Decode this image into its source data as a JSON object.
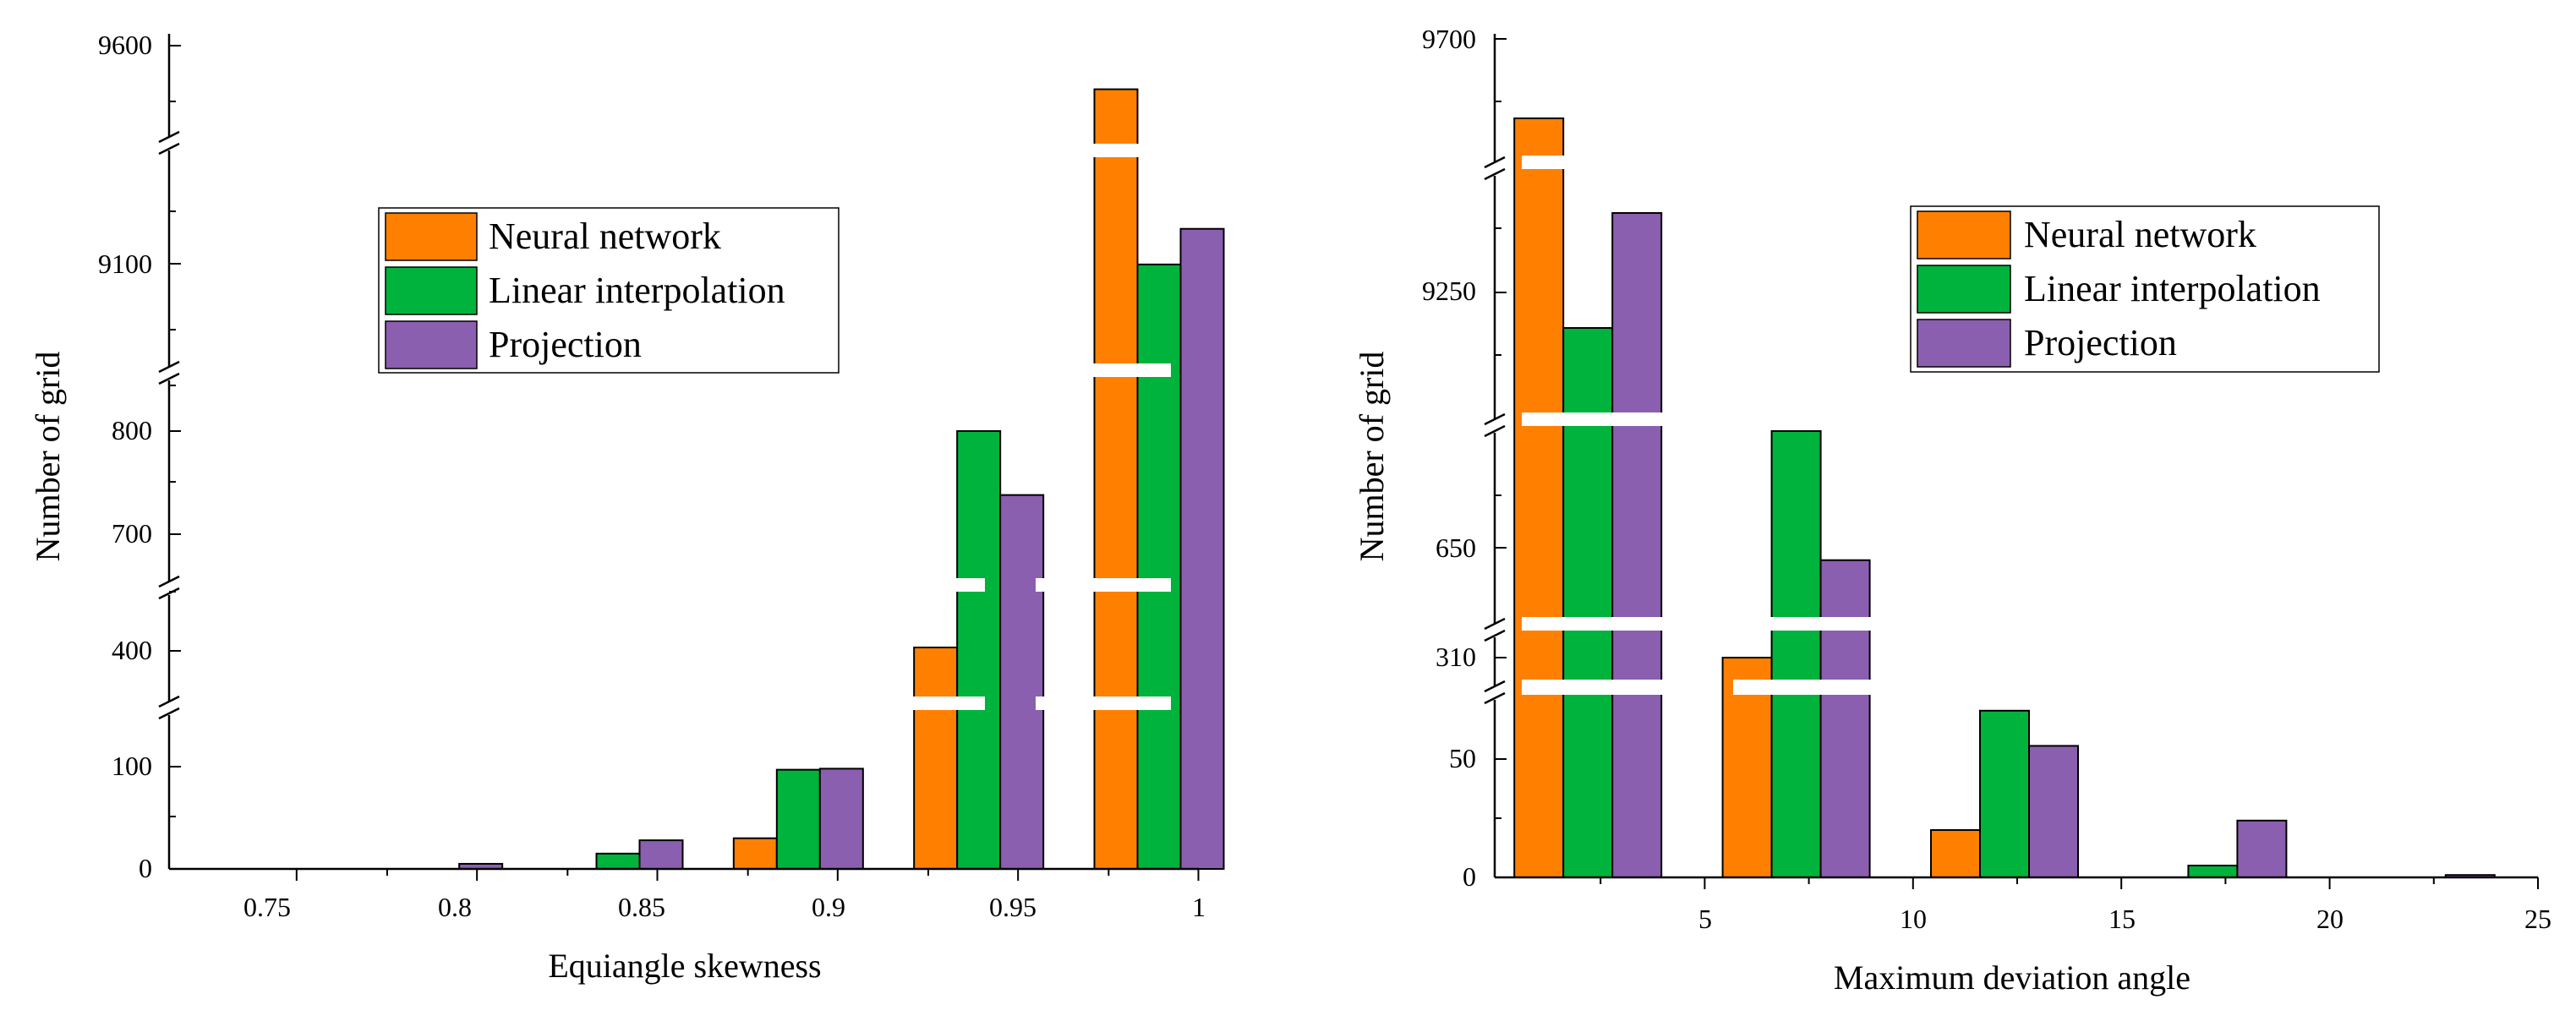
{
  "colors": {
    "neural": "#ff8000",
    "linear": "#00b33c",
    "projection": "#8b5fb0",
    "axis": "#000000",
    "background": "#ffffff"
  },
  "chart_data": [
    {
      "type": "bar",
      "title": "",
      "xlabel": "Equiangle skewness",
      "ylabel": "Number of grid",
      "x_ticks": [
        "0.75",
        "0.8",
        "0.85",
        "0.9",
        "0.95",
        "1"
      ],
      "y_ticks": [
        "0",
        "100",
        "400",
        "700",
        "800",
        "9100",
        "9600"
      ],
      "broken_y_axis": true,
      "legend": [
        "Neural network",
        "Linear interpolation",
        "Projection"
      ],
      "legend_position": "upper-middle",
      "bin_centers": [
        0.75,
        0.8,
        0.85,
        0.9,
        0.95,
        1.0
      ],
      "series": [
        {
          "name": "Neural network",
          "values": [
            0,
            0,
            0,
            30,
            420,
            9500
          ]
        },
        {
          "name": "Linear interpolation",
          "values": [
            0,
            0,
            15,
            97,
            803,
            9070
          ]
        },
        {
          "name": "Projection",
          "values": [
            0,
            5,
            28,
            98,
            738,
            9180
          ]
        }
      ]
    },
    {
      "type": "bar",
      "title": "",
      "xlabel": "Maximum deviation angle",
      "ylabel": "Number of grid",
      "x_ticks": [
        "5",
        "10",
        "15",
        "20",
        "25"
      ],
      "y_ticks": [
        "0",
        "50",
        "310",
        "650",
        "9250",
        "9700"
      ],
      "broken_y_axis": true,
      "legend": [
        "Neural network",
        "Linear interpolation",
        "Projection"
      ],
      "legend_position": "upper-middle",
      "bin_centers": [
        2.5,
        7.5,
        12.5,
        17.5,
        22.5
      ],
      "series": [
        {
          "name": "Neural network",
          "values": [
            9580,
            310,
            20,
            0,
            0
          ]
        },
        {
          "name": "Linear interpolation",
          "values": [
            9190,
            800,
            61,
            5,
            0
          ]
        },
        {
          "name": "Projection",
          "values": [
            9400,
            610,
            53,
            24,
            1
          ]
        }
      ]
    }
  ]
}
